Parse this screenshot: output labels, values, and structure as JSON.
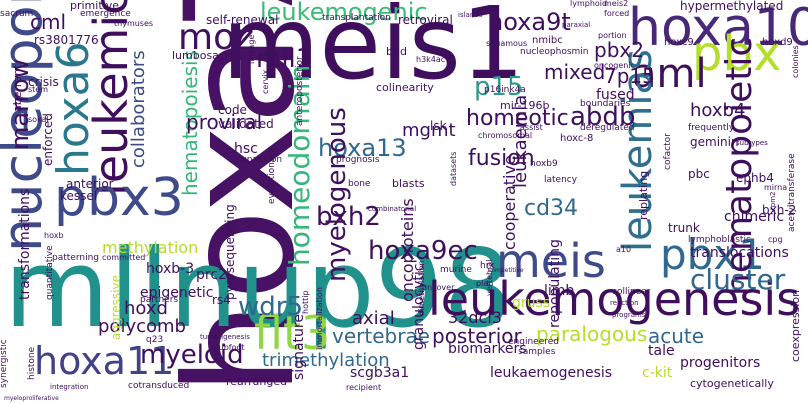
{
  "palette": {
    "dark_purple": "#3f0f5e",
    "purple": "#482878",
    "indigo": "#3e4a89",
    "blue": "#31688e",
    "teal": "#26828e",
    "green_teal": "#1f9e89",
    "green": "#35b779",
    "light_green": "#6ece58",
    "lime": "#b5de2b",
    "yellow": "#e3e418"
  },
  "words": {
    "hoxa7": "hoxa7",
    "meis1": "meis1",
    "mllnup98": "mllnup98",
    "hoxa10": "hoxa10",
    "nucleoporin": "nucleoporin",
    "leukemic": "leukemic",
    "pbx3": "pbx3",
    "hoxa6": "hoxa6",
    "leukemogenesis": "leukemogenesis",
    "hoxa11": "hoxa11",
    "pbx": "pbx",
    "aml": "aml",
    "moz": "moz",
    "flt3": "flt3",
    "meis": "meis",
    "pbx1": "pbx1",
    "hematopoietic": "hematopoietic",
    "leukemias": "leukemias",
    "myeloid": "myeloid",
    "marrow": "marrow",
    "cluster": "cluster",
    "leukemogenic": "leukemogenic",
    "hoxa13": "hoxa13",
    "homeodomain": "homeodomain",
    "myelogenous": "myelogenous",
    "hoxa9ec": "hoxa9ec",
    "bxh2": "bxh2",
    "hoxa9t": "hoxa9t",
    "mll1": "mll1",
    "wdr5": "wdr5",
    "abdb": "abdb",
    "p15": "p15",
    "fusion": "fusion",
    "homeotic": "homeotic",
    "hematopoiesis": "hematopoiesis",
    "collaborators": "collaborators",
    "cd34": "cd34",
    "mgmt": "mgmt",
    "hoxb4": "hoxb4",
    "mixed": "mixed",
    "7p15": "7p15",
    "leukaemia": "leukaemia",
    "proviral": "proviral",
    "cml": "cml",
    "pbx2": "pbx2",
    "transformations": "transformations",
    "axial": "axial",
    "vertebrae": "vertebrae",
    "posterior": "posterior",
    "paralogous": "paralogous",
    "acute": "acute",
    "trimethylation": "trimethylation",
    "hoxd": "hoxd",
    "polycomb": "polycomb",
    "translocations": "translocations",
    "chimeric": "chimeric",
    "fused": "fused",
    "cooperative": "cooperative",
    "oncoproteins": "oncoproteins",
    "methylation": "methylation",
    "hoxb3": "hoxb-3",
    "epigenetic": "epigenetic",
    "granulocytic": "granulocytic",
    "repopulating": "repopulating",
    "leukaemogenesis": "leukaemogenesis",
    "biomarkers": "biomarkers",
    "scgb3a1": "scgb3a1",
    "32dcl3": "32dcl3",
    "signature": "signature",
    "gruss": "gruss",
    "limb": "limb",
    "progenitors": "progenitors",
    "ckit": "c-kit",
    "tale": "tale",
    "prc2": "prc2",
    "rs4": "rs4",
    "pyrosequencing": "pyrosequencing",
    "hsc": "hsc",
    "code": "code",
    "validated": "validated",
    "lsk": "lsk",
    "trunk": "trunk",
    "ephb4": "ephb4",
    "bxh2b": "bxh-2",
    "geminin": "geminin",
    "pbc": "pbc",
    "hoxc8": "hoxc-8",
    "aggressive": "aggressive",
    "anterior": "anterior",
    "kessel": "kessel",
    "enforced": "enforced",
    "crisis": "crisis",
    "rs3801776": "rs3801776",
    "primitive": "primitive",
    "sacrum": "sacrum",
    "aberrant": "aberrant",
    "selfrenewal": "self-renewal",
    "transplantation": "transplantation",
    "retroviral": "retroviral",
    "islands": "islands",
    "thymuses": "thymuses",
    "lymphoid": "lymphoid",
    "meis2": "meis2",
    "forced": "forced",
    "hypermethylated": "hypermethylated",
    "hoxc9": "hoxc9",
    "hoxd9": "hoxd9",
    "colonies": "colonies",
    "nmibc": "nmibc",
    "nucleophosmin": "nucleophosmin",
    "lumbosacral": "lumbosacral",
    "mir196b": "mir-196b",
    "p16ink4a": "p16ink4a",
    "colinearity": "colinearity",
    "bud": "bud",
    "h3k4ac": "h3k4ac",
    "oncogenic": "oncogenic",
    "boundaries": "boundaries",
    "deregulated": "deregulated",
    "portion": "portion",
    "squamous": "squamous",
    "lineage": "lineage",
    "cervix": "cervix",
    "anteroposterior": "anteroposterior",
    "expansion": "expansion",
    "prognosis": "prognosis",
    "bone": "bone",
    "blasts": "blasts",
    "datasets": "datasets",
    "latency": "latency",
    "hoxb9": "hoxb9",
    "combinatorial": "combinatorial",
    "murine": "murine",
    "hrx": "hrx",
    "plan": "plan",
    "uncover": "uncover",
    "samples": "samples",
    "engineered": "engineered",
    "cytogenetically": "cytogenetically",
    "collinear": "collinear",
    "acetyltransferase": "acetyltransferase",
    "coexpression": "coexpression",
    "cofactor": "cofactor",
    "frequently": "frequently",
    "replating": "replating",
    "lymphoblastic": "lymphoblastic",
    "mirna": "mirna",
    "cpg": "cpg",
    "a10": "a10",
    "evolutionary": "evolutionary",
    "quantitative": "quantitative",
    "patterning": "patterning",
    "committed": "committed",
    "partners": "partners",
    "q23": "q23",
    "histone": "histone",
    "synergistic": "synergistic",
    "cotransduced": "cotransduced",
    "rearranged": "rearranged",
    "recipient": "recipient",
    "myeloproliferative": "myeloproliferative",
    "clubfoot": "clubfoot",
    "hottip": "hottip",
    "immortalization": "immortalization",
    "tumorigenesis": "tumorigenesis",
    "emergence": "emergence",
    "stem": "stem",
    "sokal": "sokal",
    "hoxb": "hoxb",
    "integration": "integration",
    "assist": "assist",
    "chromosomal": "chromosomal",
    "dimethylation": "dimethylation",
    "vertebral": "vertebral",
    "competitive": "competitive",
    "reaction": "reaction",
    "programs": "programs",
    "subtypes": "subtypes",
    "paraxial": "paraxial",
    "tpm2": "tpm2"
  }
}
